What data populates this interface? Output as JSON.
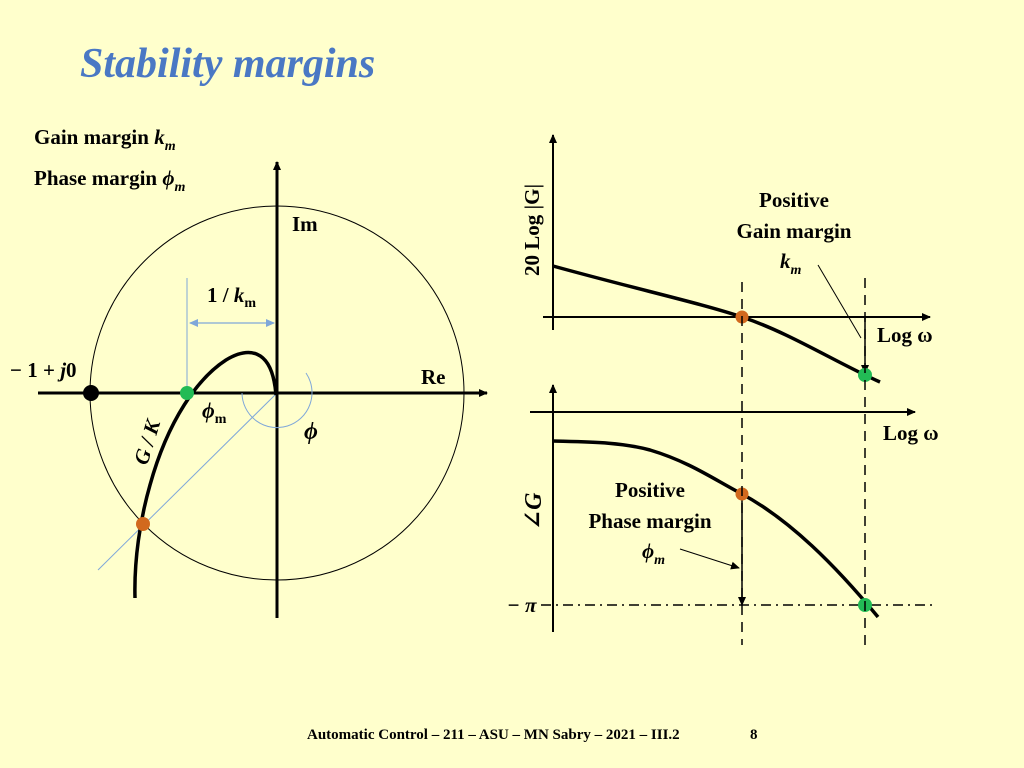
{
  "slide": {
    "title": "Stability margins",
    "gain_margin_label": "Gain margin",
    "gain_margin_symbol": "k",
    "gain_margin_sub": "m",
    "phase_margin_label": "Phase margin",
    "phase_margin_symbol": "ϕ",
    "phase_margin_sub": "m"
  },
  "nyquist": {
    "im_label": "Im",
    "re_label": "Re",
    "critical_point_label": "− 1 + ",
    "critical_point_j": "j",
    "critical_point_zero": "0",
    "inverse_gain_label": "1 / ",
    "inverse_gain_k": "k",
    "inverse_gain_sub": "m",
    "phase_margin_angle_symbol": "ϕ",
    "phase_margin_angle_sub": "m",
    "phase_angle_symbol": "ϕ",
    "curve_label": "G / K"
  },
  "bode_magnitude": {
    "ylabel": "20 Log |G|",
    "xlabel": "Log ω",
    "annotation_line1": "Positive",
    "annotation_line2": "Gain margin",
    "annotation_symbol": "k",
    "annotation_sub": "m"
  },
  "bode_phase": {
    "ylabel": "∠G",
    "xlabel": "Log ω",
    "neg_pi_label": "− π",
    "annotation_line1": "Positive",
    "annotation_line2": "Phase margin",
    "annotation_symbol": "ϕ",
    "annotation_sub": "m"
  },
  "colors": {
    "title": "#4A78C4",
    "background": "#FFFFCC",
    "crossing_marker": "#D2691E",
    "critical_marker": "#22BB55",
    "helper_line": "#7FA7D9"
  },
  "footer": {
    "text": "Automatic Control – 211 – ASU – MN Sabry – 2021 – III.2",
    "page": "8"
  }
}
